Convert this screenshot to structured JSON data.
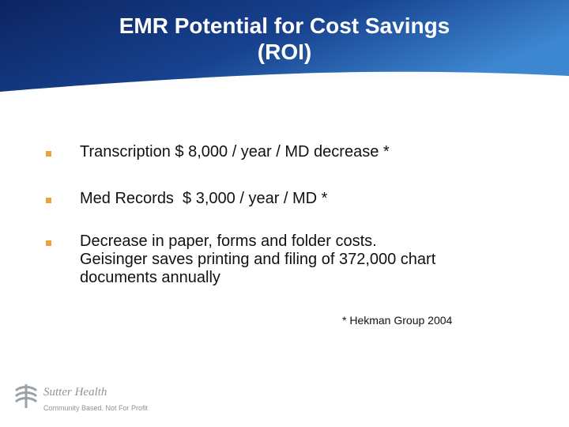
{
  "slide": {
    "title_lines": [
      "EMR Potential for Cost Savings",
      "(ROI)"
    ],
    "bullets": [
      "Transcription $ 8,000 / year / MD decrease *",
      "Med Records  $ 3,000 / year / MD *",
      "Decrease in paper, forms and folder costs.\nGeisinger saves printing and filing of 372,000 chart\ndocuments annually"
    ],
    "footnote": "* Hekman Group 2004"
  },
  "logo": {
    "name": "Sutter Health",
    "tagline": "Community Based. Not For Profit",
    "icon": "sutter-health-cross-icon"
  },
  "colors": {
    "header_dark": "#0d2a66",
    "header_light": "#4a8fd6",
    "bullet": "#e8a33c"
  }
}
